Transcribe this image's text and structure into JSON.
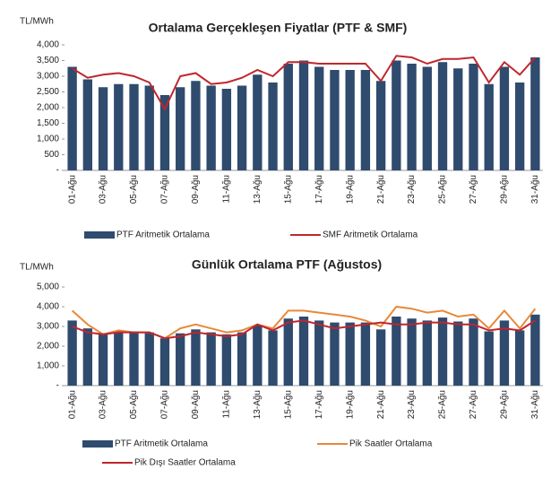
{
  "chart_data": [
    {
      "type": "bar-line",
      "title": "Ortalama Gerçekleşen Fiyatlar (PTF & SMF)",
      "y_label": "TL/MWh",
      "categories": [
        "01-Ağu",
        null,
        "03-Ağu",
        null,
        "05-Ağu",
        null,
        "07-Ağu",
        null,
        "09-Ağu",
        null,
        "11-Ağu",
        null,
        "13-Ağu",
        null,
        "15-Ağu",
        null,
        "17-Ağu",
        null,
        "19-Ağu",
        null,
        "21-Ağu",
        null,
        "23-Ağu",
        null,
        "25-Ağu",
        null,
        "27-Ağu",
        null,
        "29-Ağu",
        null,
        "31-Ağu"
      ],
      "ylim": [
        0,
        4000
      ],
      "yticks": [
        {
          "value": 0,
          "label": "-"
        },
        500,
        {
          "value": 1000,
          "label": "1,000"
        },
        {
          "value": 1500,
          "label": "1,500"
        },
        {
          "value": 2000,
          "label": "2,000"
        },
        {
          "value": 2500,
          "label": "2,500"
        },
        {
          "value": 3000,
          "label": "3,000"
        },
        {
          "value": 3500,
          "label": "3,500"
        },
        {
          "value": 4000,
          "label": "4,000"
        }
      ],
      "series": [
        {
          "name": "PTF Aritmetik Ortalama",
          "type": "bar",
          "color": "#2f4b6e",
          "values": [
            3300,
            2900,
            2650,
            2750,
            2750,
            2700,
            2400,
            2650,
            2850,
            2700,
            2600,
            2700,
            3050,
            2800,
            3400,
            3500,
            3300,
            3200,
            3200,
            3200,
            2850,
            3500,
            3400,
            3300,
            3450,
            3250,
            3400,
            2750,
            3300,
            2800,
            3600
          ]
        },
        {
          "name": "SMF Aritmetik Ortalama",
          "type": "line",
          "color": "#c0262d",
          "values": [
            3250,
            2950,
            3050,
            3100,
            3000,
            2800,
            1950,
            3000,
            3100,
            2750,
            2800,
            2950,
            3200,
            3000,
            3450,
            3450,
            3400,
            3400,
            3400,
            3400,
            2850,
            3650,
            3600,
            3400,
            3550,
            3550,
            3600,
            2800,
            3450,
            3050,
            3600
          ]
        }
      ]
    },
    {
      "type": "bar-line",
      "title": "Günlük Ortalama PTF (Ağustos)",
      "y_label": "TL/MWh",
      "categories": [
        "01-Ağu",
        null,
        "03-Ağu",
        null,
        "05-Ağu",
        null,
        "07-Ağu",
        null,
        "09-Ağu",
        null,
        "11-Ağu",
        null,
        "13-Ağu",
        null,
        "15-Ağu",
        null,
        "17-Ağu",
        null,
        "19-Ağu",
        null,
        "21-Ağu",
        null,
        "23-Ağu",
        null,
        "25-Ağu",
        null,
        "27-Ağu",
        null,
        "29-Ağu",
        null,
        "31-Ağu"
      ],
      "ylim": [
        0,
        5000
      ],
      "yticks": [
        {
          "value": 0,
          "label": "-"
        },
        {
          "value": 1000,
          "label": "1,000"
        },
        {
          "value": 2000,
          "label": "2,000"
        },
        {
          "value": 3000,
          "label": "3,000"
        },
        {
          "value": 4000,
          "label": "4,000"
        },
        {
          "value": 5000,
          "label": "5,000"
        }
      ],
      "series": [
        {
          "name": "PTF Aritmetik Ortalama",
          "type": "bar",
          "color": "#2f4b6e",
          "values": [
            3300,
            2900,
            2650,
            2750,
            2750,
            2700,
            2400,
            2650,
            2850,
            2700,
            2600,
            2700,
            3050,
            2800,
            3400,
            3500,
            3300,
            3200,
            3200,
            3200,
            2850,
            3500,
            3400,
            3300,
            3450,
            3250,
            3400,
            2750,
            3300,
            2800,
            3600
          ]
        },
        {
          "name": "Pik Saatler Ortalama",
          "type": "line",
          "color": "#e8893a",
          "values": [
            3800,
            3100,
            2600,
            2800,
            2700,
            2700,
            2400,
            2900,
            3100,
            2900,
            2700,
            2800,
            3100,
            2900,
            3800,
            3800,
            3700,
            3600,
            3500,
            3300,
            3000,
            4000,
            3900,
            3700,
            3800,
            3500,
            3600,
            2900,
            3800,
            2900,
            3900
          ]
        },
        {
          "name": "Pik Dışı Saatler Ortalama",
          "type": "line",
          "color": "#c0262d",
          "values": [
            3000,
            2700,
            2600,
            2700,
            2700,
            2700,
            2400,
            2500,
            2700,
            2600,
            2500,
            2600,
            3100,
            2800,
            3200,
            3300,
            3100,
            2900,
            3000,
            3100,
            3200,
            3100,
            3100,
            3200,
            3200,
            3100,
            3100,
            2800,
            2900,
            2800,
            3300
          ]
        }
      ]
    }
  ]
}
